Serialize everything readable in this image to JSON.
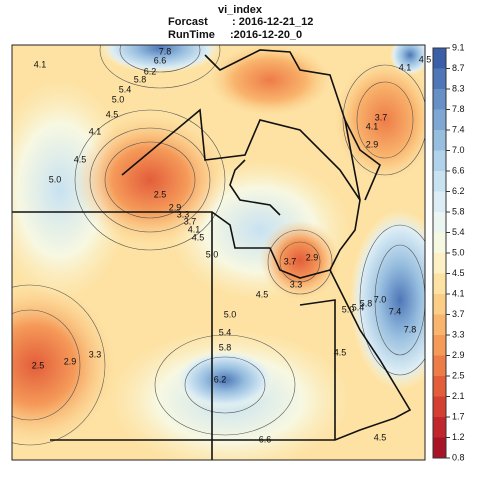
{
  "header": {
    "title": "vi_index",
    "forecast_label": "Forcast",
    "forecast_value": ": 2016-12-21_12",
    "runtime_label": "RunTime",
    "runtime_value": ":2016-12-20_0"
  },
  "legend": {
    "labels": [
      "9.1",
      "8.7",
      "8.3",
      "7.8",
      "7.4",
      "7.0",
      "6.6",
      "6.2",
      "5.8",
      "5.4",
      "5.0",
      "4.5",
      "4.1",
      "3.7",
      "3.3",
      "2.9",
      "2.5",
      "2.1",
      "1.7",
      "1.2",
      "0.8"
    ],
    "colors": [
      "#3a5fa8",
      "#4f77b8",
      "#6690c6",
      "#7ea8d3",
      "#97bedf",
      "#b0d2ea",
      "#c8e2f1",
      "#dcedf5",
      "#ebf5f2",
      "#f7f8e2",
      "#fdf0c4",
      "#fde2a4",
      "#fccd86",
      "#f9b46d",
      "#f59a59",
      "#ee7c48",
      "#e35d3b",
      "#d43f32",
      "#c0262b",
      "#a81426"
    ]
  },
  "contour_labels": [
    "4.1",
    "7.8",
    "6.6",
    "6.2",
    "5.8",
    "5.4",
    "5.0",
    "4.5",
    "4.1",
    "4.5",
    "5.0",
    "2.5",
    "2.9",
    "3.3",
    "3.7",
    "4.1",
    "4.5",
    "5.0",
    "4.5",
    "3.7",
    "3.3",
    "2.9",
    "5.0",
    "5.4",
    "5.8",
    "6.2",
    "6.6",
    "3.3",
    "2.9",
    "2.5",
    "4.1",
    "4.1",
    "3.7",
    "2.9",
    "4.5",
    "5.0",
    "5.4",
    "5.8",
    "7.0",
    "7.4",
    "7.8",
    "4.5",
    "4.5"
  ]
}
